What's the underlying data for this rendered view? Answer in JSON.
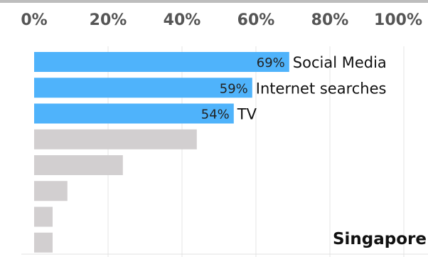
{
  "chart_data": {
    "type": "bar",
    "orientation": "horizontal",
    "annotation": "Singapore",
    "xlim": [
      0,
      100
    ],
    "x_tick_labels": [
      "0%",
      "20%",
      "40%",
      "60%",
      "80%",
      "100%"
    ],
    "grid": true,
    "categories": [
      "Social Media",
      "Internet searches",
      "TV",
      "",
      "",
      "",
      "",
      ""
    ],
    "values": [
      69,
      59,
      54,
      44,
      24,
      9,
      5,
      5
    ],
    "value_labels": [
      "69%",
      "59%",
      "54%",
      "",
      "",
      "",
      "",
      ""
    ],
    "highlighted": [
      true,
      true,
      true,
      false,
      false,
      false,
      false,
      false
    ],
    "colors": {
      "highlight": "#4fb3fb",
      "muted": "#d2cfd0",
      "grid": "#e6e6e6"
    }
  }
}
